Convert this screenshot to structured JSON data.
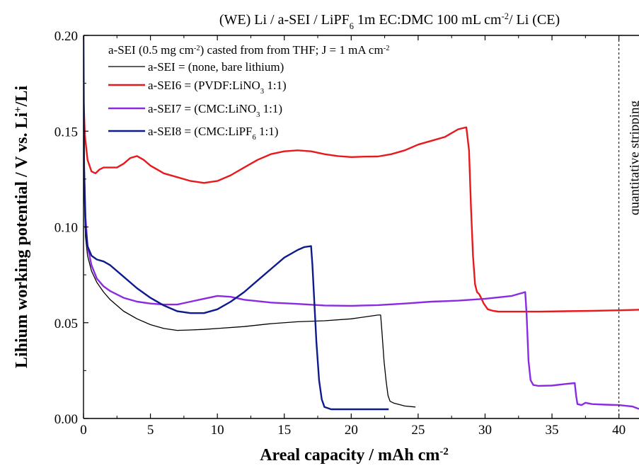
{
  "chart_data": {
    "type": "line",
    "title_parts": [
      "(WE) Li / a-SEI / LiPF",
      "6",
      " 1m EC:DMC 100 mL cm",
      "-2",
      "/ Li (CE)"
    ],
    "xlabel_parts": [
      "Areal capacity / mAh cm",
      "-2"
    ],
    "ylabel_parts": [
      "Lihium working potential / V vs. Li",
      "+",
      "/Li"
    ],
    "xlim": [
      0,
      41.5
    ],
    "ylim": [
      0,
      0.2
    ],
    "x_ticks": [
      0,
      5,
      10,
      15,
      20,
      25,
      30,
      35,
      40
    ],
    "x_tick_labels": [
      "0",
      "5",
      "10",
      "15",
      "20",
      "25",
      "30",
      "35",
      "40"
    ],
    "y_ticks": [
      0,
      0.05,
      0.1,
      0.15,
      0.2
    ],
    "y_tick_labels": [
      "0.00",
      "0.05",
      "0.10",
      "0.15",
      "0.20"
    ],
    "grid": false,
    "legend_placement": "top-left",
    "legend_header_parts": [
      "a-SEI (0.5 mg cm",
      "-2",
      ") casted from from THF; J = 1 mA cm",
      "-2"
    ],
    "annotation": {
      "text": "quantitative stripping",
      "x": 40
    },
    "series": [
      {
        "legend_parts": [
          "a-SEI = (none, bare lithium)"
        ],
        "color": "#000000",
        "points": [
          [
            0,
            0.2
          ],
          [
            0.05,
            0.12
          ],
          [
            0.15,
            0.095
          ],
          [
            0.3,
            0.085
          ],
          [
            0.6,
            0.077
          ],
          [
            1,
            0.071
          ],
          [
            1.5,
            0.066
          ],
          [
            2,
            0.062
          ],
          [
            3,
            0.056
          ],
          [
            4,
            0.052
          ],
          [
            5,
            0.049
          ],
          [
            6,
            0.047
          ],
          [
            7,
            0.046
          ],
          [
            8,
            0.0462
          ],
          [
            9,
            0.0465
          ],
          [
            10,
            0.047
          ],
          [
            12,
            0.048
          ],
          [
            14,
            0.0495
          ],
          [
            16,
            0.0505
          ],
          [
            18,
            0.051
          ],
          [
            20,
            0.052
          ],
          [
            21,
            0.053
          ],
          [
            22,
            0.054
          ],
          [
            22.2,
            0.054
          ],
          [
            22.3,
            0.045
          ],
          [
            22.45,
            0.03
          ],
          [
            22.6,
            0.02
          ],
          [
            22.75,
            0.012
          ],
          [
            22.9,
            0.009
          ],
          [
            23.2,
            0.008
          ],
          [
            24,
            0.0065
          ],
          [
            24.8,
            0.006
          ]
        ]
      },
      {
        "legend_parts": [
          "a-SEI6 = (PVDF:LiNO",
          "3",
          " 1:1)"
        ],
        "color": "#e8191c",
        "points": [
          [
            0,
            0.168
          ],
          [
            0.1,
            0.148
          ],
          [
            0.3,
            0.135
          ],
          [
            0.6,
            0.129
          ],
          [
            0.9,
            0.128
          ],
          [
            1.2,
            0.13
          ],
          [
            1.5,
            0.131
          ],
          [
            2,
            0.131
          ],
          [
            2.5,
            0.131
          ],
          [
            3,
            0.133
          ],
          [
            3.5,
            0.136
          ],
          [
            4,
            0.137
          ],
          [
            4.5,
            0.135
          ],
          [
            5,
            0.132
          ],
          [
            5.5,
            0.13
          ],
          [
            6,
            0.128
          ],
          [
            7,
            0.126
          ],
          [
            8,
            0.124
          ],
          [
            9,
            0.123
          ],
          [
            10,
            0.124
          ],
          [
            11,
            0.127
          ],
          [
            12,
            0.131
          ],
          [
            13,
            0.135
          ],
          [
            14,
            0.138
          ],
          [
            15,
            0.1395
          ],
          [
            16,
            0.14
          ],
          [
            17,
            0.1395
          ],
          [
            18,
            0.138
          ],
          [
            19,
            0.137
          ],
          [
            20,
            0.1365
          ],
          [
            21,
            0.1367
          ],
          [
            22,
            0.1368
          ],
          [
            23,
            0.138
          ],
          [
            24,
            0.14
          ],
          [
            25,
            0.143
          ],
          [
            26,
            0.145
          ],
          [
            27,
            0.147
          ],
          [
            28,
            0.151
          ],
          [
            28.6,
            0.152
          ],
          [
            28.8,
            0.14
          ],
          [
            28.95,
            0.11
          ],
          [
            29.1,
            0.085
          ],
          [
            29.25,
            0.07
          ],
          [
            29.4,
            0.066
          ],
          [
            29.55,
            0.065
          ],
          [
            29.7,
            0.063
          ],
          [
            29.9,
            0.06
          ],
          [
            30.2,
            0.057
          ],
          [
            30.6,
            0.0562
          ],
          [
            31,
            0.0558
          ],
          [
            32,
            0.0558
          ],
          [
            34,
            0.0558
          ],
          [
            36,
            0.056
          ],
          [
            38,
            0.0562
          ],
          [
            40,
            0.0565
          ],
          [
            41.5,
            0.0568
          ]
        ]
      },
      {
        "legend_parts": [
          "a-SEI7 = (CMC:LiNO",
          "3",
          " 1:1)"
        ],
        "color": "#8a2be2",
        "points": [
          [
            0,
            0.16
          ],
          [
            0.05,
            0.13
          ],
          [
            0.15,
            0.105
          ],
          [
            0.3,
            0.09
          ],
          [
            0.6,
            0.08
          ],
          [
            1,
            0.073
          ],
          [
            1.5,
            0.069
          ],
          [
            2,
            0.0665
          ],
          [
            3,
            0.063
          ],
          [
            4,
            0.061
          ],
          [
            5,
            0.06
          ],
          [
            6,
            0.0595
          ],
          [
            7,
            0.0595
          ],
          [
            8,
            0.061
          ],
          [
            9,
            0.0625
          ],
          [
            10,
            0.064
          ],
          [
            11,
            0.0635
          ],
          [
            12,
            0.062
          ],
          [
            14,
            0.0605
          ],
          [
            16,
            0.0598
          ],
          [
            18,
            0.059
          ],
          [
            20,
            0.0588
          ],
          [
            22,
            0.0592
          ],
          [
            24,
            0.06
          ],
          [
            26,
            0.061
          ],
          [
            28,
            0.0615
          ],
          [
            30,
            0.0625
          ],
          [
            32,
            0.064
          ],
          [
            33,
            0.066
          ],
          [
            33.1,
            0.055
          ],
          [
            33.25,
            0.03
          ],
          [
            33.4,
            0.02
          ],
          [
            33.6,
            0.0175
          ],
          [
            34,
            0.017
          ],
          [
            35,
            0.0172
          ],
          [
            36,
            0.018
          ],
          [
            36.7,
            0.0185
          ],
          [
            36.8,
            0.012
          ],
          [
            36.9,
            0.0075
          ],
          [
            37.2,
            0.007
          ],
          [
            37.5,
            0.0082
          ],
          [
            38,
            0.0075
          ],
          [
            39,
            0.0072
          ],
          [
            40,
            0.007
          ],
          [
            41,
            0.0063
          ],
          [
            41.5,
            0.005
          ]
        ]
      },
      {
        "legend_parts": [
          "a-SEI8 = (CMC:LiPF",
          "6",
          " 1:1)"
        ],
        "color": "#0d1b8c",
        "points": [
          [
            0,
            0.2
          ],
          [
            0.05,
            0.13
          ],
          [
            0.15,
            0.1
          ],
          [
            0.3,
            0.09
          ],
          [
            0.6,
            0.085
          ],
          [
            1,
            0.083
          ],
          [
            1.5,
            0.082
          ],
          [
            2,
            0.08
          ],
          [
            3,
            0.074
          ],
          [
            4,
            0.068
          ],
          [
            5,
            0.063
          ],
          [
            6,
            0.059
          ],
          [
            7,
            0.056
          ],
          [
            8,
            0.055
          ],
          [
            9,
            0.055
          ],
          [
            10,
            0.057
          ],
          [
            11,
            0.061
          ],
          [
            12,
            0.066
          ],
          [
            13,
            0.072
          ],
          [
            14,
            0.078
          ],
          [
            15,
            0.084
          ],
          [
            16,
            0.088
          ],
          [
            16.5,
            0.0895
          ],
          [
            17,
            0.09
          ],
          [
            17.1,
            0.08
          ],
          [
            17.25,
            0.06
          ],
          [
            17.4,
            0.04
          ],
          [
            17.6,
            0.02
          ],
          [
            17.8,
            0.01
          ],
          [
            18,
            0.006
          ],
          [
            18.5,
            0.0048
          ],
          [
            20,
            0.0048
          ],
          [
            22,
            0.0048
          ],
          [
            22.8,
            0.0048
          ]
        ]
      }
    ]
  }
}
